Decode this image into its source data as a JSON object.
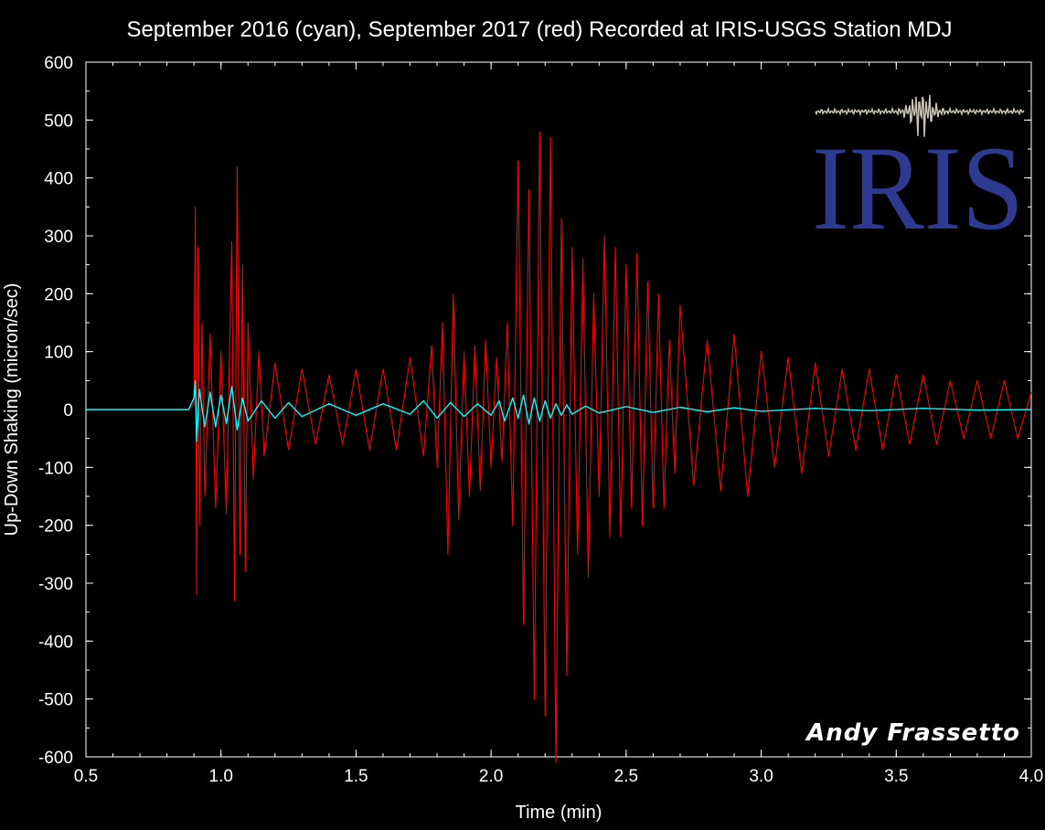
{
  "chart_data": {
    "type": "line",
    "title": "September 2016 (cyan), September 2017 (red) Recorded at IRIS-USGS Station MDJ",
    "xlabel": "Time (min)",
    "ylabel": "Up-Down Shaking (micron/sec)",
    "xlim": [
      0.5,
      4.0
    ],
    "ylim": [
      -600,
      600
    ],
    "xticks": [
      "0.5",
      "1.0",
      "1.5",
      "2.0",
      "2.5",
      "3.0",
      "3.5",
      "4.0"
    ],
    "yticks": [
      "600",
      "500",
      "400",
      "300",
      "200",
      "100",
      "0",
      "-100",
      "-200",
      "-300",
      "-400",
      "-500",
      "-600"
    ],
    "grid": false,
    "series": [
      {
        "name": "September 2017 (red)",
        "color": "#ff0000",
        "x": [
          0.5,
          0.88,
          0.9,
          0.905,
          0.91,
          0.915,
          0.92,
          0.93,
          0.94,
          0.96,
          0.98,
          1.0,
          1.02,
          1.04,
          1.05,
          1.06,
          1.07,
          1.08,
          1.09,
          1.1,
          1.12,
          1.14,
          1.16,
          1.2,
          1.25,
          1.3,
          1.35,
          1.4,
          1.45,
          1.5,
          1.55,
          1.6,
          1.65,
          1.7,
          1.75,
          1.78,
          1.8,
          1.82,
          1.84,
          1.86,
          1.88,
          1.9,
          1.92,
          1.94,
          1.96,
          1.98,
          2.0,
          2.02,
          2.04,
          2.06,
          2.08,
          2.1,
          2.12,
          2.14,
          2.16,
          2.18,
          2.2,
          2.22,
          2.24,
          2.26,
          2.28,
          2.3,
          2.32,
          2.34,
          2.36,
          2.38,
          2.4,
          2.42,
          2.44,
          2.46,
          2.48,
          2.5,
          2.52,
          2.54,
          2.56,
          2.58,
          2.6,
          2.62,
          2.64,
          2.66,
          2.68,
          2.7,
          2.75,
          2.8,
          2.85,
          2.9,
          2.95,
          3.0,
          3.05,
          3.1,
          3.15,
          3.2,
          3.25,
          3.3,
          3.35,
          3.4,
          3.45,
          3.5,
          3.55,
          3.6,
          3.65,
          3.7,
          3.75,
          3.8,
          3.85,
          3.9,
          3.95,
          4.0
        ],
        "y": [
          0,
          0,
          10,
          350,
          -320,
          280,
          -200,
          150,
          -150,
          130,
          -170,
          100,
          -180,
          290,
          -330,
          420,
          -250,
          250,
          -280,
          150,
          -120,
          100,
          -80,
          80,
          -70,
          70,
          -60,
          60,
          -60,
          70,
          -70,
          70,
          -70,
          90,
          -80,
          110,
          -100,
          150,
          -250,
          200,
          -190,
          100,
          -150,
          110,
          -140,
          120,
          -100,
          90,
          -90,
          150,
          -200,
          430,
          -370,
          380,
          -500,
          480,
          -530,
          470,
          -610,
          330,
          -460,
          280,
          -250,
          260,
          -290,
          200,
          -150,
          300,
          -220,
          280,
          -220,
          250,
          -170,
          270,
          -200,
          220,
          -170,
          200,
          -170,
          120,
          -110,
          180,
          -130,
          120,
          -140,
          130,
          -150,
          100,
          -100,
          90,
          -110,
          80,
          -80,
          70,
          -70,
          70,
          -70,
          60,
          -60,
          60,
          -60,
          50,
          -50,
          50,
          -50,
          50,
          -50,
          30
        ]
      },
      {
        "name": "September 2016 (cyan)",
        "color": "#00ffff",
        "x": [
          0.5,
          0.88,
          0.9,
          0.905,
          0.91,
          0.92,
          0.94,
          0.96,
          0.98,
          1.0,
          1.02,
          1.04,
          1.06,
          1.08,
          1.1,
          1.15,
          1.2,
          1.25,
          1.3,
          1.4,
          1.5,
          1.6,
          1.7,
          1.75,
          1.8,
          1.85,
          1.9,
          1.95,
          2.0,
          2.03,
          2.05,
          2.08,
          2.1,
          2.12,
          2.14,
          2.16,
          2.18,
          2.2,
          2.22,
          2.24,
          2.26,
          2.28,
          2.3,
          2.35,
          2.4,
          2.5,
          2.6,
          2.7,
          2.8,
          2.9,
          3.0,
          3.2,
          3.4,
          3.6,
          3.8,
          4.0
        ],
        "y": [
          0,
          0,
          20,
          50,
          -55,
          35,
          -30,
          30,
          -30,
          25,
          -25,
          40,
          -35,
          20,
          -20,
          15,
          -15,
          12,
          -12,
          10,
          -10,
          10,
          -8,
          15,
          -15,
          12,
          -12,
          10,
          -10,
          15,
          -20,
          20,
          -15,
          25,
          -25,
          20,
          -20,
          15,
          -15,
          10,
          -10,
          8,
          -8,
          6,
          -6,
          5,
          -5,
          4,
          -4,
          3,
          -3,
          2,
          -2,
          2,
          -1,
          0
        ]
      }
    ]
  },
  "logo": {
    "text": "IRIS",
    "color": "#2e3990",
    "seismogram_color": "#c9c4b3"
  },
  "credit": {
    "text": "Andy Frassetto"
  }
}
